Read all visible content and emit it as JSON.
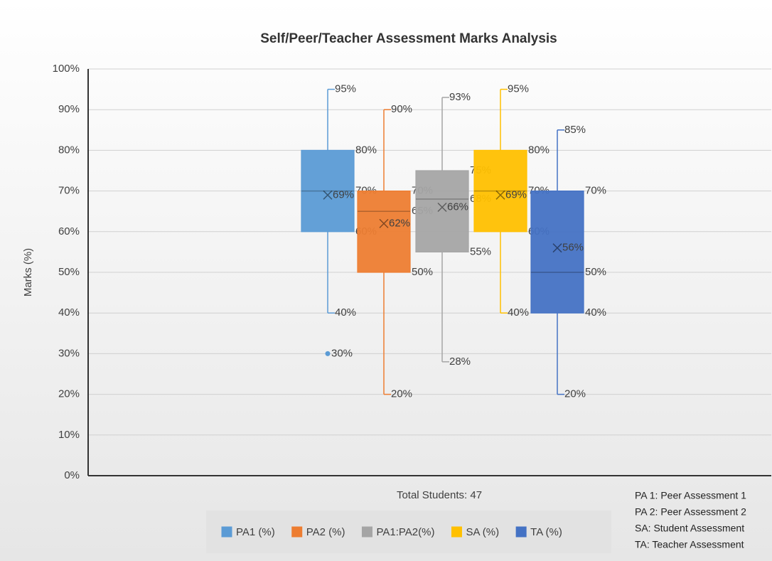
{
  "chart_data": {
    "type": "boxplot",
    "title": "Self/Peer/Teacher Assessment Marks Analysis",
    "ylabel": "Marks (%)",
    "xlabel": "Total Students: 47",
    "ylim": [
      0,
      100
    ],
    "yticks": [
      {
        "value": 0,
        "label": "0%"
      },
      {
        "value": 10,
        "label": "10%"
      },
      {
        "value": 20,
        "label": "20%"
      },
      {
        "value": 30,
        "label": "30%"
      },
      {
        "value": 40,
        "label": "40%"
      },
      {
        "value": 50,
        "label": "50%"
      },
      {
        "value": 60,
        "label": "60%"
      },
      {
        "value": 70,
        "label": "70%"
      },
      {
        "value": 80,
        "label": "80%"
      },
      {
        "value": 90,
        "label": "90%"
      },
      {
        "value": 100,
        "label": "100%"
      }
    ],
    "grid": true,
    "legend": "bottom",
    "series": [
      {
        "name": "PA1 (%)",
        "color": "#5b9bd5",
        "min": 40,
        "q1": 60,
        "median": 70,
        "q3": 80,
        "max": 95,
        "mean": 69,
        "outliers": [
          30
        ],
        "value_labels": {
          "min": "40%",
          "q1": "60%",
          "median": "70%",
          "q3": "80%",
          "max": "95%",
          "mean": "69%"
        },
        "outlier_labels": [
          "30%"
        ]
      },
      {
        "name": "PA2 (%)",
        "color": "#ed7d31",
        "min": 20,
        "q1": 50,
        "median": 65,
        "q3": 70,
        "max": 90,
        "mean": 62,
        "outliers": [],
        "value_labels": {
          "min": "20%",
          "q1": "50%",
          "median": "65%",
          "q3": "70%",
          "max": "90%",
          "mean": "62%"
        },
        "outlier_labels": []
      },
      {
        "name": "PA1:PA2(%)",
        "color": "#a5a5a5",
        "min": 28,
        "q1": 55,
        "median": 68,
        "q3": 75,
        "max": 93,
        "mean": 66,
        "outliers": [],
        "value_labels": {
          "min": "28%",
          "q1": "55%",
          "median": "68%",
          "q3": "75%",
          "max": "93%",
          "mean": "66%"
        },
        "outlier_labels": []
      },
      {
        "name": "SA (%)",
        "color": "#ffc000",
        "min": 40,
        "q1": 60,
        "median": 70,
        "q3": 80,
        "max": 95,
        "mean": 69,
        "outliers": [],
        "value_labels": {
          "min": "40%",
          "q1": "60%",
          "median": "70%",
          "q3": "80%",
          "max": "95%",
          "mean": "69%"
        },
        "outlier_labels": []
      },
      {
        "name": "TA (%)",
        "color": "#4472c4",
        "min": 20,
        "q1": 40,
        "median": 50,
        "q3": 70,
        "max": 85,
        "mean": 56,
        "outliers": [],
        "value_labels": {
          "min": "20%",
          "q1": "40%",
          "median": "50%",
          "q3": "70%",
          "max": "85%",
          "mean": "56%"
        },
        "outlier_labels": []
      }
    ],
    "notes": [
      "PA 1: Peer Assessment 1",
      "PA 2: Peer Assessment 2",
      "SA: Student Assessment",
      "TA: Teacher Assessment"
    ]
  }
}
